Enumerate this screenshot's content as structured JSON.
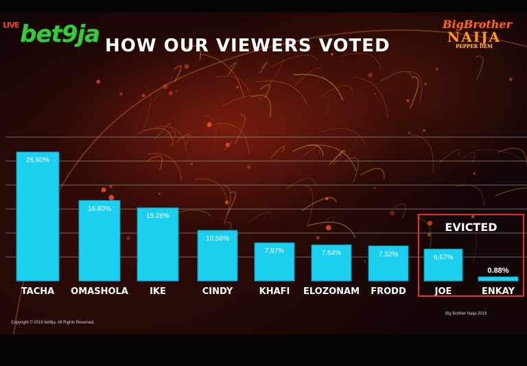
{
  "header": {
    "title": "HOW OUR VIEWERS VOTED",
    "logo_left": "bet9ja",
    "logo_left_small": "LIVE",
    "logo_right_line1": "BigBrother",
    "logo_right_line2": "NAIJA",
    "logo_right_line3": "PEPPER DEM"
  },
  "evicted": {
    "label": "EVICTED"
  },
  "footer": {
    "copyright": "Copyright © 2019 bet9ja. All Rights Reserved.",
    "right": "Big Brother Naija 2019"
  },
  "colors": {
    "bar": "#1ccfef",
    "evicted_box": "#e8331c",
    "title": "#ffffff"
  },
  "chart_data": {
    "type": "bar",
    "title": "HOW OUR VIEWERS VOTED",
    "categories": [
      "TACHA",
      "OMASHOLA",
      "IKE",
      "CINDY",
      "KHAFI",
      "ELOZONAM",
      "FRODD",
      "JOE",
      "ENKAY"
    ],
    "values": [
      26.9,
      16.8,
      15.26,
      10.56,
      7.97,
      7.54,
      7.32,
      6.67,
      0.88
    ],
    "value_labels": [
      "26.90%",
      "16.80%",
      "15.26%",
      "10.56%",
      "7.97%",
      "7.54%",
      "7.32%",
      "6.67%",
      "0.88%"
    ],
    "evicted": [
      "JOE",
      "ENKAY"
    ],
    "ylim": [
      0,
      30
    ],
    "grid": true,
    "xlabel": "",
    "ylabel": ""
  }
}
